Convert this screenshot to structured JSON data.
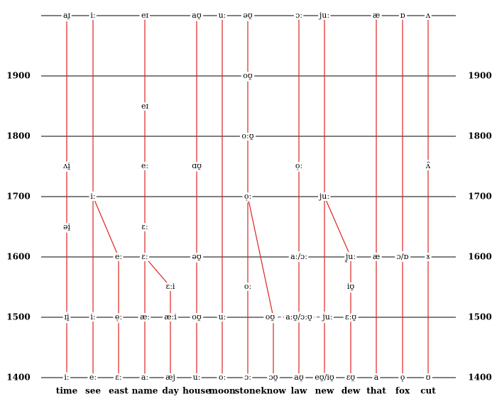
{
  "years": [
    1900,
    1800,
    1700,
    1600,
    1500,
    1400
  ],
  "words": [
    "time",
    "see",
    "east",
    "name",
    "day",
    "house",
    "moon",
    "stone",
    "know",
    "law",
    "new",
    "dew",
    "that",
    "fox",
    "cut"
  ],
  "nodes": [
    {
      "label": "aɪ̯"
    },
    {
      "label": "iː"
    },
    {
      "label": "eɪ"
    },
    {
      "label": "aʊ̯"
    },
    {
      "label": "uː"
    },
    {
      "label": "əʊ̯"
    },
    {
      "label": "ɔː"
    },
    {
      "label": "juː"
    },
    {
      "label": "æ"
    },
    {
      "label": "ɒ"
    },
    {
      "label": "ʌ"
    },
    {
      "label": "oʊ̯"
    },
    {
      "label": "eɪ"
    },
    {
      "label": "oːʊ̯"
    },
    {
      "label": "ʌi̯"
    },
    {
      "label": "eː"
    },
    {
      "label": "ɑʊ̯"
    },
    {
      "label": "ọː"
    },
    {
      "label": "ʌ̈"
    },
    {
      "label": "iː"
    },
    {
      "label": "ọː"
    },
    {
      "label": "juː"
    },
    {
      "label": "əi̯"
    },
    {
      "label": "ɛː"
    },
    {
      "label": "eː"
    },
    {
      "label": "ɛː"
    },
    {
      "label": "əʊ̯"
    },
    {
      "label": "aː/ɔː"
    },
    {
      "label": "j̯uː"
    },
    {
      "label": "æ"
    },
    {
      "label": "ɔ/ɒ"
    },
    {
      "label": "ɤ"
    },
    {
      "label": "ɛːi"
    },
    {
      "label": "oː"
    },
    {
      "label": "iʊ̯"
    },
    {
      "label": "ɪi̯"
    },
    {
      "label": "iː"
    },
    {
      "label": "ẹː"
    },
    {
      "label": "æː"
    },
    {
      "label": "æːi"
    },
    {
      "label": "oʊ̯"
    },
    {
      "label": "uː"
    },
    {
      "label": "oʊ̯ –"
    },
    {
      "label": "aːʊ̯/ɔːʊ̯"
    },
    {
      "label": "– juː"
    },
    {
      "label": "ɛːʊ̯"
    },
    {
      "label": "iː"
    },
    {
      "label": "eː"
    },
    {
      "label": "ɛː"
    },
    {
      "label": "aː"
    },
    {
      "label": "æj"
    },
    {
      "label": "uː"
    },
    {
      "label": "oː"
    },
    {
      "label": "ɔː"
    },
    {
      "label": "ɔʊ̯"
    },
    {
      "label": "aʊ̯"
    },
    {
      "label": "eʊ̯/iʊ̯"
    },
    {
      "label": "ɛʊ̯"
    },
    {
      "label": "a"
    },
    {
      "label": "ǫ"
    },
    {
      "label": "ʊ"
    }
  ]
}
